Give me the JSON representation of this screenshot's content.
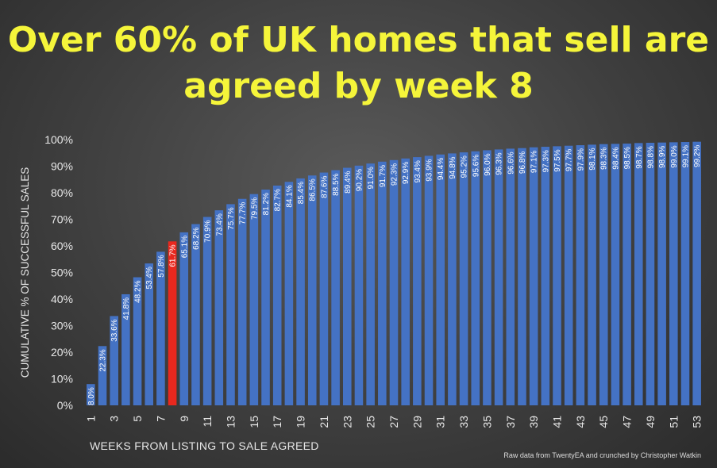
{
  "chart_data": {
    "type": "bar",
    "title": "Over 60% of UK homes that sell are agreed by week 8",
    "xlabel": "WEEKS FROM LISTING TO SALE AGREED",
    "ylabel": "CUMULATIVE % OF SUCCESSFUL SALES",
    "credit": "Raw data from TwentyEA and crunched by Christopher Watkin",
    "ylim": [
      0,
      100
    ],
    "y_ticks": [
      "0%",
      "10%",
      "20%",
      "30%",
      "40%",
      "50%",
      "60%",
      "70%",
      "80%",
      "90%",
      "100%"
    ],
    "categories": [
      1,
      2,
      3,
      4,
      5,
      6,
      7,
      8,
      9,
      10,
      11,
      12,
      13,
      14,
      15,
      16,
      17,
      18,
      19,
      20,
      21,
      22,
      23,
      24,
      25,
      26,
      27,
      28,
      29,
      30,
      31,
      32,
      33,
      34,
      35,
      36,
      37,
      38,
      39,
      40,
      41,
      42,
      43,
      44,
      45,
      46,
      47,
      48,
      49,
      50,
      51,
      52,
      53
    ],
    "x_tick_labels": [
      "1",
      "3",
      "5",
      "7",
      "9",
      "11",
      "13",
      "15",
      "17",
      "19",
      "21",
      "23",
      "25",
      "27",
      "29",
      "31",
      "33",
      "35",
      "37",
      "39",
      "41",
      "43",
      "45",
      "47",
      "49",
      "51",
      "53"
    ],
    "values": [
      8.0,
      22.3,
      33.6,
      41.8,
      48.2,
      53.4,
      57.8,
      61.7,
      65.1,
      68.2,
      70.9,
      73.4,
      75.7,
      77.7,
      79.5,
      81.2,
      82.7,
      84.1,
      85.4,
      86.5,
      87.6,
      88.5,
      89.4,
      90.2,
      91.0,
      91.7,
      92.3,
      92.9,
      93.4,
      93.9,
      94.4,
      94.8,
      95.2,
      95.6,
      96.0,
      96.3,
      96.6,
      96.8,
      97.1,
      97.3,
      97.5,
      97.7,
      97.9,
      98.1,
      98.3,
      98.4,
      98.5,
      98.7,
      98.8,
      98.9,
      99.0,
      99.1,
      99.2
    ],
    "data_labels": [
      "8.0%",
      "22.3%",
      "33.6%",
      "41.8%",
      "48.2%",
      "53.4%",
      "57.8%",
      "61.7%",
      "65.1%",
      "68.2%",
      "70.9%",
      "73.4%",
      "75.7%",
      "77.7%",
      "79.5%",
      "81.2%",
      "82.7%",
      "84.1%",
      "85.4%",
      "86.5%",
      "87.6%",
      "88.5%",
      "89.4%",
      "90.2%",
      "91.0%",
      "91.7%",
      "92.3%",
      "92.9%",
      "93.4%",
      "93.9%",
      "94.4%",
      "94.8%",
      "95.2%",
      "95.6%",
      "96.0%",
      "96.3%",
      "96.6%",
      "96.8%",
      "97.1%",
      "97.3%",
      "97.5%",
      "97.7%",
      "97.9%",
      "98.1%",
      "98.3%",
      "98.4%",
      "98.5%",
      "98.7%",
      "98.8%",
      "98.9%",
      "99.0%",
      "99.1%",
      "99.2%"
    ],
    "bar_color": "#4472c4",
    "highlight_color": "#e8281e",
    "highlight_index": 7,
    "grid": false,
    "legend": "none"
  }
}
